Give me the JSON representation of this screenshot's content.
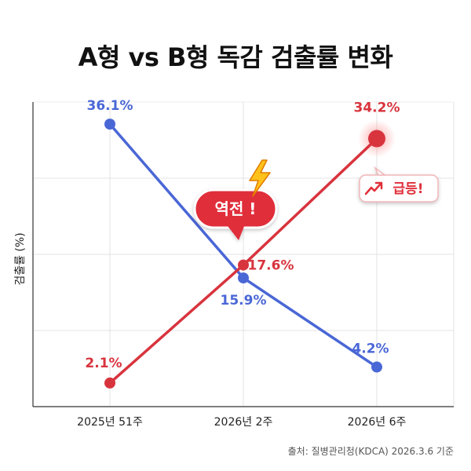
{
  "chart_data": {
    "type": "line",
    "title": "A형 vs B형 독감 검출률 변화",
    "ylabel": "검출률 (%)",
    "categories": [
      "2025년 51주",
      "2026년 2주",
      "2026년 6주"
    ],
    "ylim": [
      -1,
      39
    ],
    "grid": true,
    "series": [
      {
        "color": "#4a67d6",
        "values": [
          36.1,
          15.9,
          4.2
        ],
        "labels": [
          "36.1%",
          "15.9%",
          "4.2%"
        ]
      },
      {
        "color": "#d8343e",
        "values": [
          2.1,
          17.6,
          34.2
        ],
        "labels": [
          "2.1%",
          "17.6%",
          "34.2%"
        ]
      }
    ],
    "annotations": {
      "crossover": "역전 !",
      "surge": "급등!"
    }
  },
  "icons": {
    "lightning": "lightning-icon",
    "trend": "trend-up-icon"
  },
  "source": "출처: 질병관리청(KDCA) 2026.3.6 기준"
}
